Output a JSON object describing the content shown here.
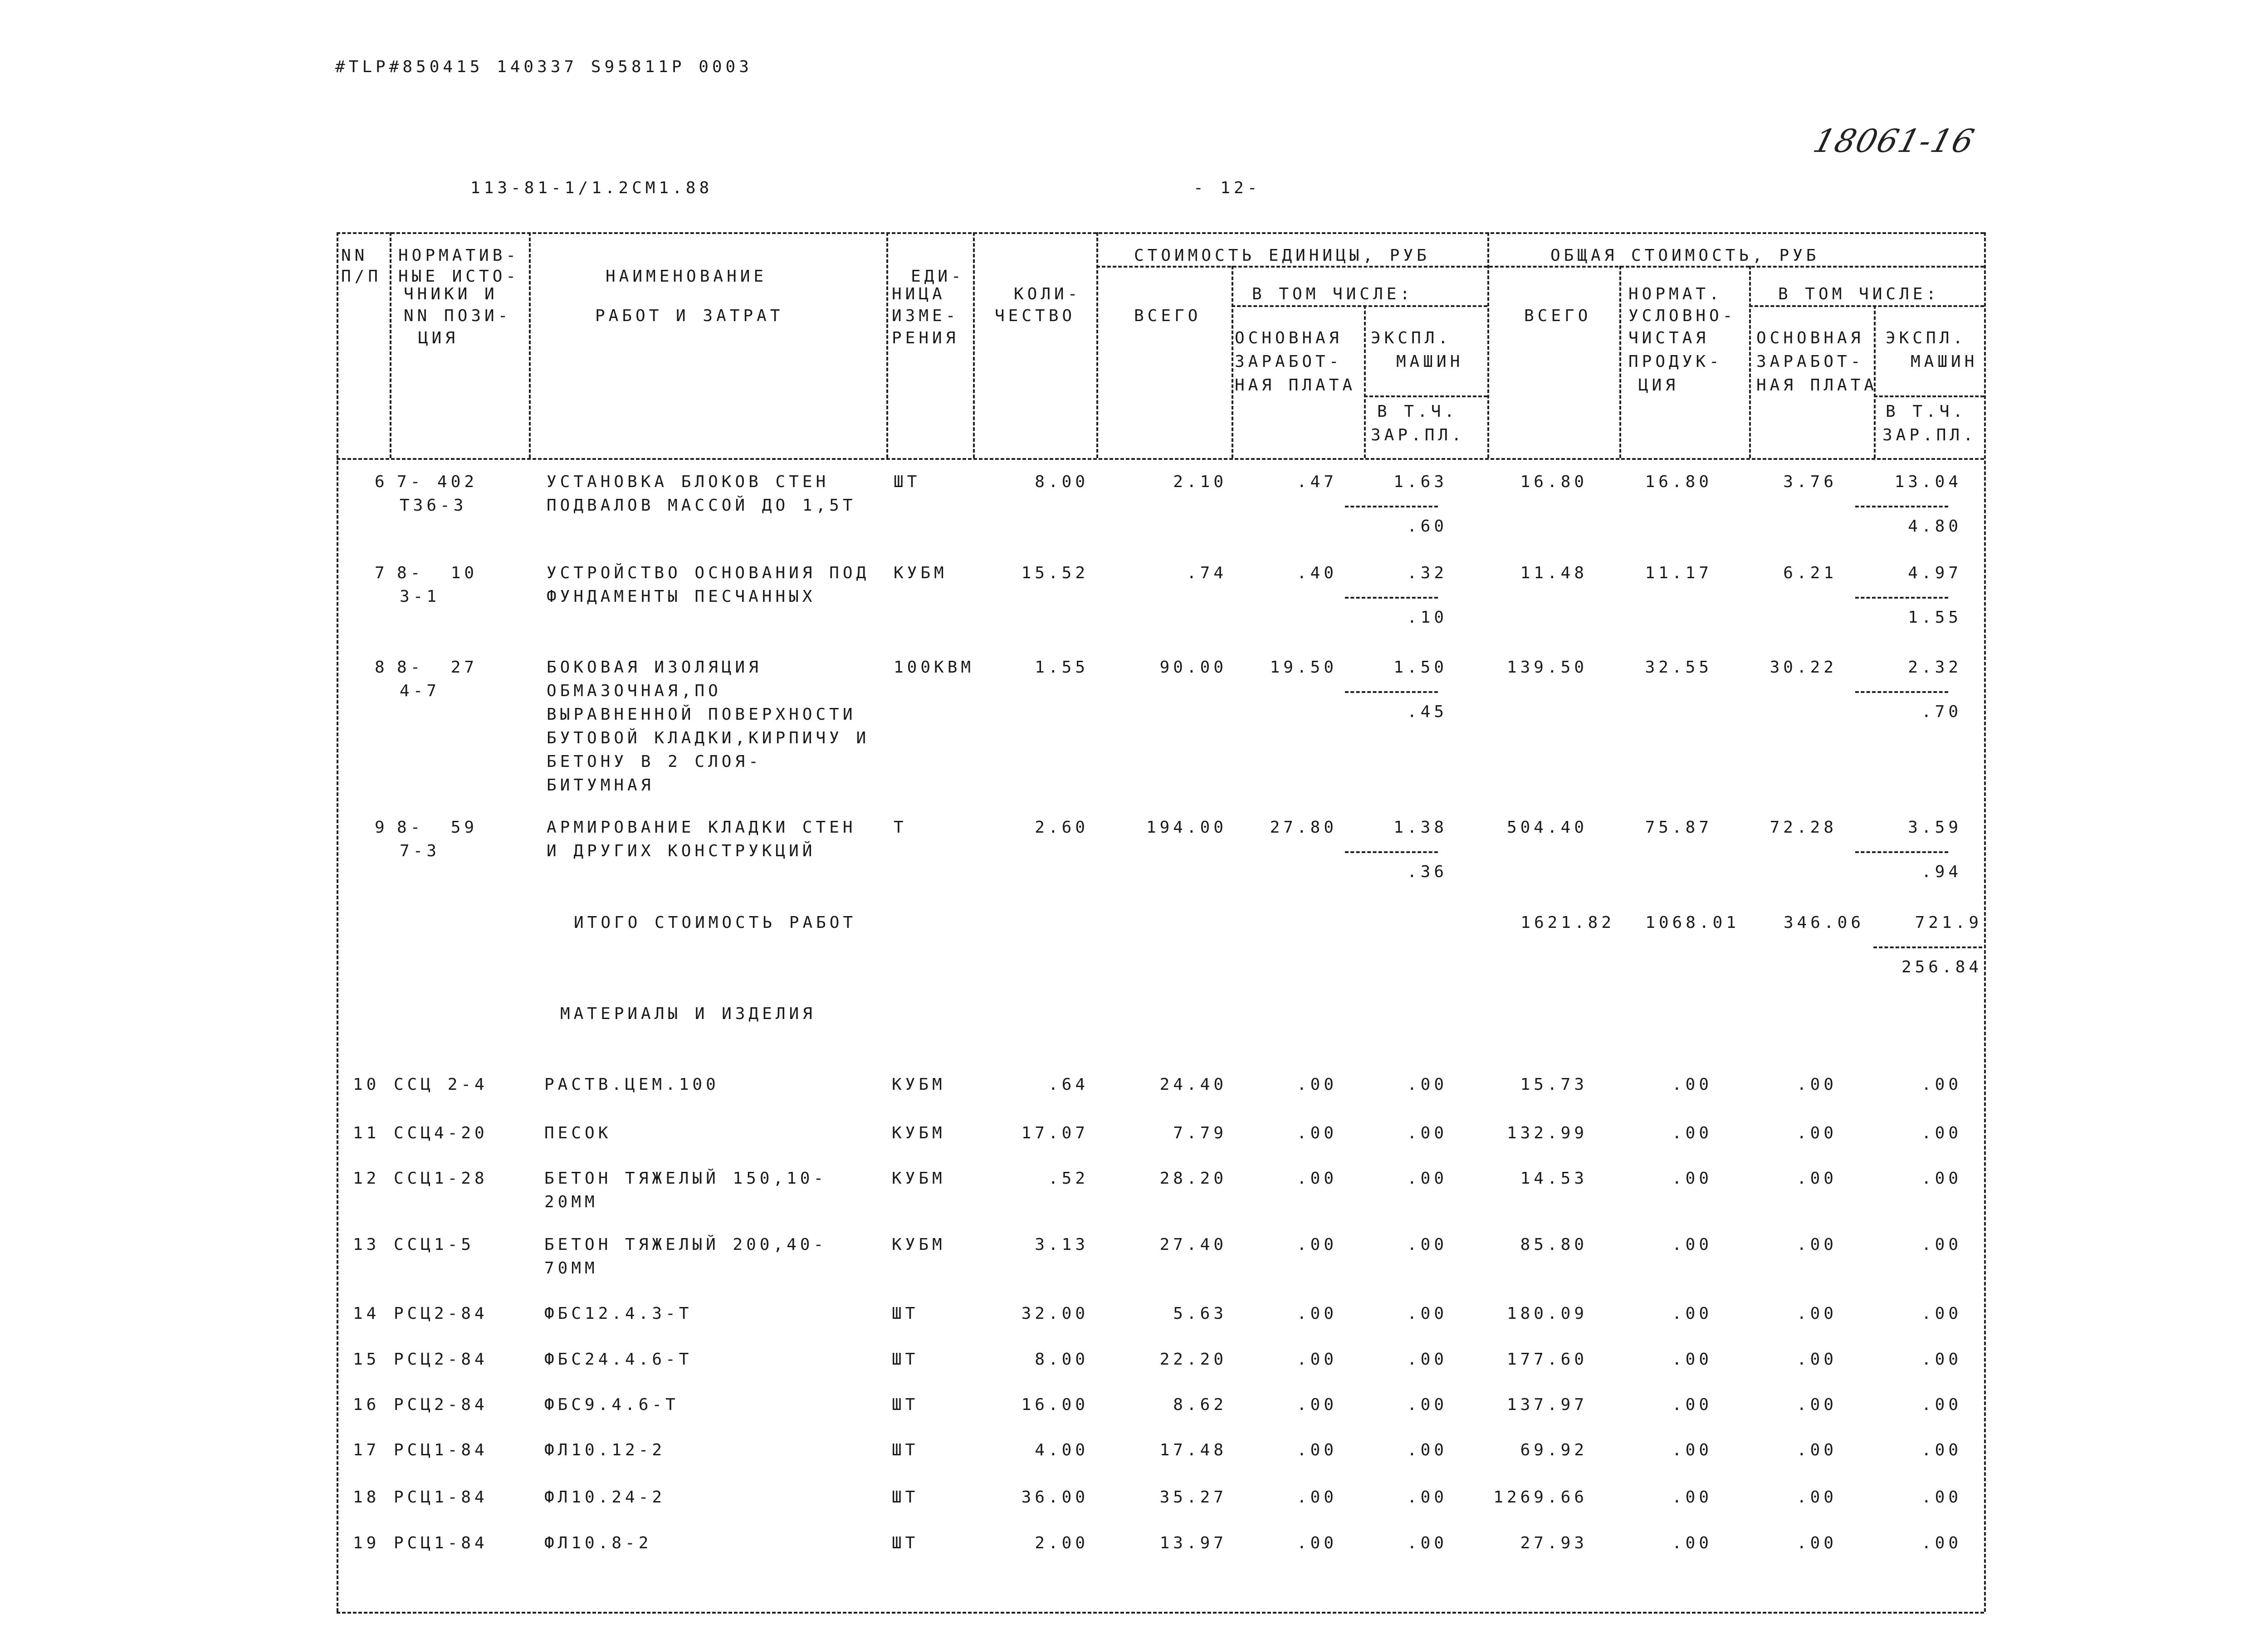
{
  "print_header": "#TLP#850415 140337 S95811P 0003",
  "handwritten_number": "18061-16",
  "doc_code": "113-81-1/1.2СМ1.88",
  "page_number": "- 12-",
  "table_header": {
    "nn": [
      "NN",
      "П/П"
    ],
    "norm_source": [
      "НОРМАТИВ-",
      "НЫЕ ИСТО-",
      "ЧНИКИ И",
      "NN ПОЗИ-",
      "ЦИЯ"
    ],
    "name": [
      "НАИМЕНОВАНИЕ",
      "РАБОТ И ЗАТРАТ"
    ],
    "unit": [
      "ЕДИ-",
      "НИЦА",
      "ИЗМЕ-",
      "РЕНИЯ"
    ],
    "qty": [
      "КОЛИ-",
      "ЧЕСТВО"
    ],
    "unit_cost_group": "СТОИМОСТЬ ЕДИНИЦЫ, РУБ",
    "total_cost_group": "ОБЩАЯ СТОИМОСТЬ, РУБ",
    "all": "ВСЕГО",
    "including": "В ТОМ ЧИСЛЕ:",
    "base_wage": [
      "ОСНОВНАЯ",
      "ЗАРАБОТ-",
      "НАЯ ПЛАТА"
    ],
    "machine_ops": [
      "ЭКСПЛ.",
      "МАШИН"
    ],
    "incl_wage": [
      "В Т.Ч.",
      "ЗАР.ПЛ."
    ],
    "net_product": [
      "НОРМАТ.",
      "УСЛОВНО-",
      "ЧИСТАЯ",
      "ПРОДУК-",
      "ЦИЯ"
    ]
  },
  "work_items": [
    {
      "nn": "6",
      "code": [
        "7- 402",
        "Т36-3"
      ],
      "name": [
        "УСТАНОВКА БЛОКОВ СТЕН",
        "ПОДВАЛОВ МАССОЙ ДО 1,5Т"
      ],
      "unit": "ШТ",
      "qty": "8.00",
      "unit_total": "2.10",
      "unit_wage": ".47",
      "unit_mach": "1.63",
      "unit_mach_wage": ".60",
      "total": "16.80",
      "net": "16.80",
      "wage": "3.76",
      "mach": "13.04",
      "mach_wage": "4.80"
    },
    {
      "nn": "7",
      "code": [
        "8-  10",
        "3-1"
      ],
      "name": [
        "УСТРОЙСТВО ОСНОВАНИЯ ПОД",
        "ФУНДАМЕНТЫ ПЕСЧАННЫХ"
      ],
      "unit": "КУБМ",
      "qty": "15.52",
      "unit_total": ".74",
      "unit_wage": ".40",
      "unit_mach": ".32",
      "unit_mach_wage": ".10",
      "total": "11.48",
      "net": "11.17",
      "wage": "6.21",
      "mach": "4.97",
      "mach_wage": "1.55"
    },
    {
      "nn": "8",
      "code": [
        "8-  27",
        "4-7"
      ],
      "name": [
        "БОКОВАЯ ИЗОЛЯЦИЯ",
        "ОБМАЗОЧНАЯ,ПО",
        "ВЫРАВНЕННОЙ ПОВЕРХНОСТИ",
        "БУТОВОЙ КЛАДКИ,КИРПИЧУ И",
        "БЕТОНУ В 2 СЛОЯ-",
        "БИТУМНАЯ"
      ],
      "unit": "100КВМ",
      "qty": "1.55",
      "unit_total": "90.00",
      "unit_wage": "19.50",
      "unit_mach": "1.50",
      "unit_mach_wage": ".45",
      "total": "139.50",
      "net": "32.55",
      "wage": "30.22",
      "mach": "2.32",
      "mach_wage": ".70"
    },
    {
      "nn": "9",
      "code": [
        "8-  59",
        "7-3"
      ],
      "name": [
        "АРМИРОВАНИЕ КЛАДКИ СТЕН",
        "И ДРУГИХ КОНСТРУКЦИЙ"
      ],
      "unit": "Т",
      "qty": "2.60",
      "unit_total": "194.00",
      "unit_wage": "27.80",
      "unit_mach": "1.38",
      "unit_mach_wage": ".36",
      "total": "504.40",
      "net": "75.87",
      "wage": "72.28",
      "mach": "3.59",
      "mach_wage": ".94"
    }
  ],
  "works_total": {
    "label": "ИТОГО СТОИМОСТЬ РАБОТ",
    "total": "1621.82",
    "net": "1068.01",
    "wage": "346.06",
    "mach": "721.9",
    "mach_wage": "256.84"
  },
  "materials_title": "МАТЕРИАЛЫ И ИЗДЕЛИЯ",
  "materials": [
    {
      "nn": "10",
      "code": "ССЦ 2-4",
      "name": [
        "РАСТВ.ЦЕМ.100"
      ],
      "unit": "КУБМ",
      "qty": ".64",
      "unit_total": "24.40",
      "unit_wage": ".00",
      "unit_mach": ".00",
      "total": "15.73",
      "net": ".00",
      "wage": ".00",
      "mach": ".00"
    },
    {
      "nn": "11",
      "code": "ССЦ4-20",
      "name": [
        "ПЕСОК"
      ],
      "unit": "КУБМ",
      "qty": "17.07",
      "unit_total": "7.79",
      "unit_wage": ".00",
      "unit_mach": ".00",
      "total": "132.99",
      "net": ".00",
      "wage": ".00",
      "mach": ".00"
    },
    {
      "nn": "12",
      "code": "ССЦ1-28",
      "name": [
        "БЕТОН ТЯЖЕЛЫЙ 150,10-",
        "20ММ"
      ],
      "unit": "КУБМ",
      "qty": ".52",
      "unit_total": "28.20",
      "unit_wage": ".00",
      "unit_mach": ".00",
      "total": "14.53",
      "net": ".00",
      "wage": ".00",
      "mach": ".00"
    },
    {
      "nn": "13",
      "code": "ССЦ1-5",
      "name": [
        "БЕТОН ТЯЖЕЛЫЙ 200,40-",
        "70ММ"
      ],
      "unit": "КУБМ",
      "qty": "3.13",
      "unit_total": "27.40",
      "unit_wage": ".00",
      "unit_mach": ".00",
      "total": "85.80",
      "net": ".00",
      "wage": ".00",
      "mach": ".00"
    },
    {
      "nn": "14",
      "code": "РСЦ2-84",
      "name": [
        "ФБС12.4.3-Т"
      ],
      "unit": "ШТ",
      "qty": "32.00",
      "unit_total": "5.63",
      "unit_wage": ".00",
      "unit_mach": ".00",
      "total": "180.09",
      "net": ".00",
      "wage": ".00",
      "mach": ".00"
    },
    {
      "nn": "15",
      "code": "РСЦ2-84",
      "name": [
        "ФБС24.4.6-Т"
      ],
      "unit": "ШТ",
      "qty": "8.00",
      "unit_total": "22.20",
      "unit_wage": ".00",
      "unit_mach": ".00",
      "total": "177.60",
      "net": ".00",
      "wage": ".00",
      "mach": ".00"
    },
    {
      "nn": "16",
      "code": "РСЦ2-84",
      "name": [
        "ФБС9.4.6-Т"
      ],
      "unit": "ШТ",
      "qty": "16.00",
      "unit_total": "8.62",
      "unit_wage": ".00",
      "unit_mach": ".00",
      "total": "137.97",
      "net": ".00",
      "wage": ".00",
      "mach": ".00"
    },
    {
      "nn": "17",
      "code": "РСЦ1-84",
      "name": [
        "ФЛ10.12-2"
      ],
      "unit": "ШТ",
      "qty": "4.00",
      "unit_total": "17.48",
      "unit_wage": ".00",
      "unit_mach": ".00",
      "total": "69.92",
      "net": ".00",
      "wage": ".00",
      "mach": ".00"
    },
    {
      "nn": "18",
      "code": "РСЦ1-84",
      "name": [
        "ФЛ10.24-2"
      ],
      "unit": "ШТ",
      "qty": "36.00",
      "unit_total": "35.27",
      "unit_wage": ".00",
      "unit_mach": ".00",
      "total": "1269.66",
      "net": ".00",
      "wage": ".00",
      "mach": ".00"
    },
    {
      "nn": "19",
      "code": "РСЦ1-84",
      "name": [
        "ФЛ10.8-2"
      ],
      "unit": "ШТ",
      "qty": "2.00",
      "unit_total": "13.97",
      "unit_wage": ".00",
      "unit_mach": ".00",
      "total": "27.93",
      "net": ".00",
      "wage": ".00",
      "mach": ".00"
    }
  ]
}
